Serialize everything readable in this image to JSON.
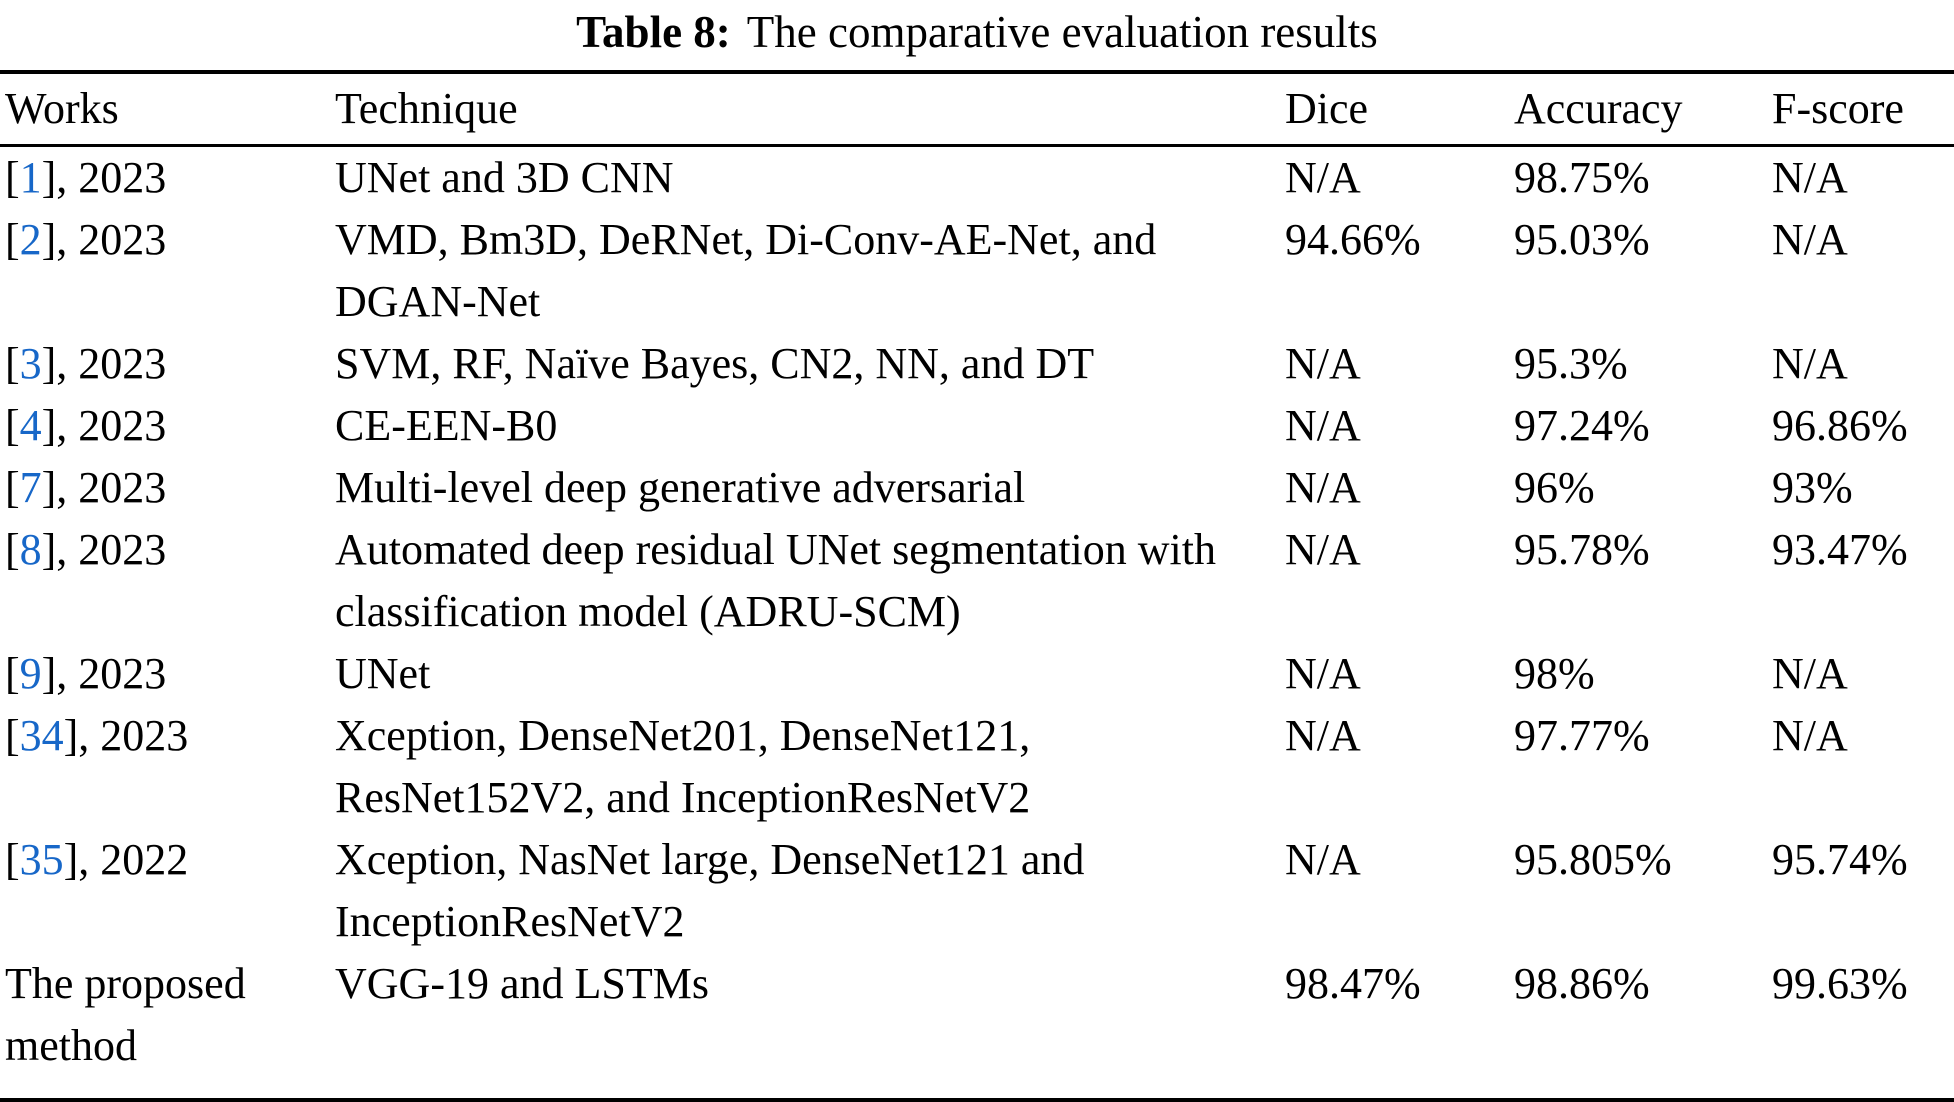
{
  "caption": {
    "label": "Table 8:",
    "text": "The comparative evaluation results"
  },
  "table": {
    "columns": [
      "Works",
      "Technique",
      "Dice",
      "Accuracy",
      "F-score"
    ],
    "rows": [
      {
        "works_prefix": "[",
        "cite": "1",
        "works_suffix": "], 2023",
        "technique": "UNet and 3D CNN",
        "dice": "N/A",
        "accuracy": "98.75%",
        "fscore": "N/A"
      },
      {
        "works_prefix": "[",
        "cite": "2",
        "works_suffix": "], 2023",
        "technique": "VMD, Bm3D, DeRNet, Di-Conv-AE-Net, and DGAN-Net",
        "dice": "94.66%",
        "accuracy": "95.03%",
        "fscore": "N/A"
      },
      {
        "works_prefix": "[",
        "cite": "3",
        "works_suffix": "], 2023",
        "technique": "SVM, RF, Naïve Bayes, CN2, NN, and DT",
        "dice": "N/A",
        "accuracy": "95.3%",
        "fscore": "N/A"
      },
      {
        "works_prefix": "[",
        "cite": "4",
        "works_suffix": "], 2023",
        "technique": "CE-EEN-B0",
        "dice": "N/A",
        "accuracy": "97.24%",
        "fscore": "96.86%"
      },
      {
        "works_prefix": "[",
        "cite": "7",
        "works_suffix": "], 2023",
        "technique": "Multi-level deep generative adversarial",
        "dice": "N/A",
        "accuracy": "96%",
        "fscore": "93%"
      },
      {
        "works_prefix": "[",
        "cite": "8",
        "works_suffix": "], 2023",
        "technique": "Automated deep residual UNet segmentation with classification model (ADRU-SCM)",
        "dice": "N/A",
        "accuracy": "95.78%",
        "fscore": "93.47%"
      },
      {
        "works_prefix": "[",
        "cite": "9",
        "works_suffix": "], 2023",
        "technique": "UNet",
        "dice": "N/A",
        "accuracy": "98%",
        "fscore": "N/A"
      },
      {
        "works_prefix": "[",
        "cite": "34",
        "works_suffix": "], 2023",
        "technique": "Xception, DenseNet201, DenseNet121, ResNet152V2, and InceptionResNetV2",
        "dice": "N/A",
        "accuracy": "97.77%",
        "fscore": "N/A"
      },
      {
        "works_prefix": "[",
        "cite": "35",
        "works_suffix": "], 2022",
        "technique": "Xception, NasNet large, DenseNet121 and InceptionResNetV2",
        "dice": "N/A",
        "accuracy": "95.805%",
        "fscore": "95.74%"
      },
      {
        "works_text": "The proposed method",
        "technique": "VGG-19 and LSTMs",
        "dice": "98.47%",
        "accuracy": "98.86%",
        "fscore": "99.63%"
      }
    ]
  },
  "colors": {
    "citation_link": "#1767c8",
    "text": "#000000",
    "background": "#ffffff"
  }
}
